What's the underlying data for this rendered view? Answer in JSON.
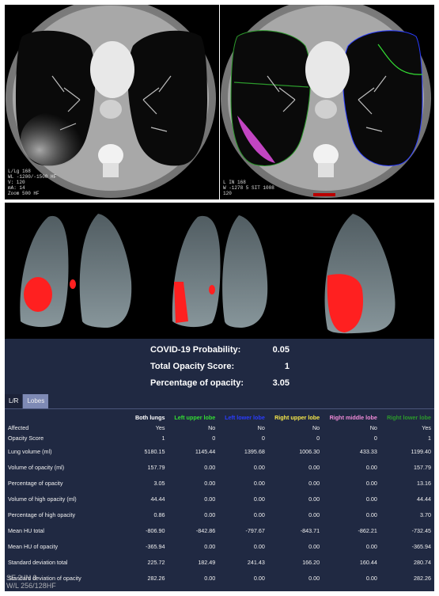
{
  "ct_left_overlay": [
    "L/Lg 168",
    "WL -1200/-1500 HF",
    "V: 120",
    "mA: 14",
    "Zoom 500 HF"
  ],
  "ct_right_overlay": [
    "L IN 168",
    "W -1278 5 SIT 1008",
    "120"
  ],
  "summary": [
    {
      "label": "COVID-19 Probability:",
      "value": "0.05"
    },
    {
      "label": "Total Opacity Score:",
      "value": "1"
    },
    {
      "label": "Percentage of opacity:",
      "value": "3.05"
    }
  ],
  "tabs": [
    {
      "label": "L/R",
      "active": false
    },
    {
      "label": "Lobes",
      "active": true
    }
  ],
  "columns": [
    {
      "label": "Both lungs",
      "color": "#ffffff"
    },
    {
      "label": "Left upper lobe",
      "color": "#33dd33"
    },
    {
      "label": "Left lower lobe",
      "color": "#2a3cff"
    },
    {
      "label": "Right upper lobe",
      "color": "#f5e64a"
    },
    {
      "label": "Right middle lobe",
      "color": "#f08ad8"
    },
    {
      "label": "Right lower lobe",
      "color": "#2c9a2c"
    }
  ],
  "rows": [
    {
      "label": "Affected",
      "values": [
        "Yes",
        "No",
        "No",
        "No",
        "No",
        "Yes"
      ]
    },
    {
      "label": "Opacity Score",
      "values": [
        "1",
        "0",
        "0",
        "0",
        "0",
        "1"
      ]
    },
    {
      "label": "Lung volume (ml)",
      "values": [
        "5180.15",
        "1145.44",
        "1395.68",
        "1006.30",
        "433.33",
        "1199.40"
      ]
    },
    {
      "label": "Volume of opacity (ml)",
      "values": [
        "157.79",
        "0.00",
        "0.00",
        "0.00",
        "0.00",
        "157.79"
      ]
    },
    {
      "label": "Percentage of opacity",
      "values": [
        "3.05",
        "0.00",
        "0.00",
        "0.00",
        "0.00",
        "13.16"
      ]
    },
    {
      "label": "Volume of high opacity (ml)",
      "values": [
        "44.44",
        "0.00",
        "0.00",
        "0.00",
        "0.00",
        "44.44"
      ]
    },
    {
      "label": "Percentage of high opacity",
      "values": [
        "0.86",
        "0.00",
        "0.00",
        "0.00",
        "0.00",
        "3.70"
      ]
    },
    {
      "label": "Mean HU total",
      "values": [
        "-806.90",
        "-842.86",
        "-797.67",
        "-843.71",
        "-862.21",
        "-732.45"
      ]
    },
    {
      "label": "Mean HU of opacity",
      "values": [
        "-365.94",
        "0.00",
        "0.00",
        "0.00",
        "0.00",
        "-365.94"
      ]
    },
    {
      "label": "Standard deviation total",
      "values": [
        "225.72",
        "182.49",
        "241.43",
        "166.20",
        "160.44",
        "280.74"
      ]
    },
    {
      "label": "Standard deviation of opacity",
      "values": [
        "282.26",
        "0.00",
        "0.00",
        "0.00",
        "0.00",
        "282.26"
      ]
    }
  ],
  "status": {
    "line1": "SE 2  IN 0",
    "line2": "W/L 256/128HF"
  }
}
